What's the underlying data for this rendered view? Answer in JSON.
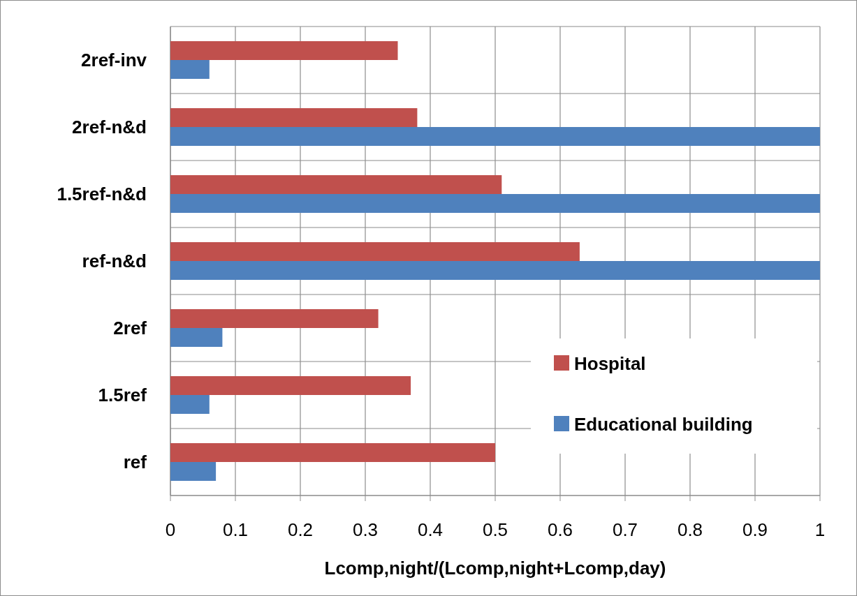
{
  "chart_data": {
    "type": "bar",
    "orientation": "horizontal",
    "categories": [
      "2ref-inv",
      "2ref-n&d",
      "1.5ref-n&d",
      "ref-n&d",
      "2ref",
      "1.5ref",
      "ref"
    ],
    "series": [
      {
        "name": "Hospital",
        "color": "#c0504d",
        "values": [
          0.35,
          0.38,
          0.51,
          0.63,
          0.32,
          0.37,
          0.5
        ]
      },
      {
        "name": "Educational building",
        "color": "#4f81bd",
        "values": [
          0.06,
          1,
          1,
          1,
          0.08,
          0.06,
          0.07
        ]
      }
    ],
    "xlabel": "Lcomp,night/(Lcomp,night+Lcomp,day)",
    "xlim": [
      0,
      1
    ],
    "xticks": [
      0,
      0.1,
      0.2,
      0.3,
      0.4,
      0.5,
      0.6,
      0.7,
      0.8,
      0.9,
      1
    ],
    "grid": true,
    "legend": "bottom right"
  }
}
